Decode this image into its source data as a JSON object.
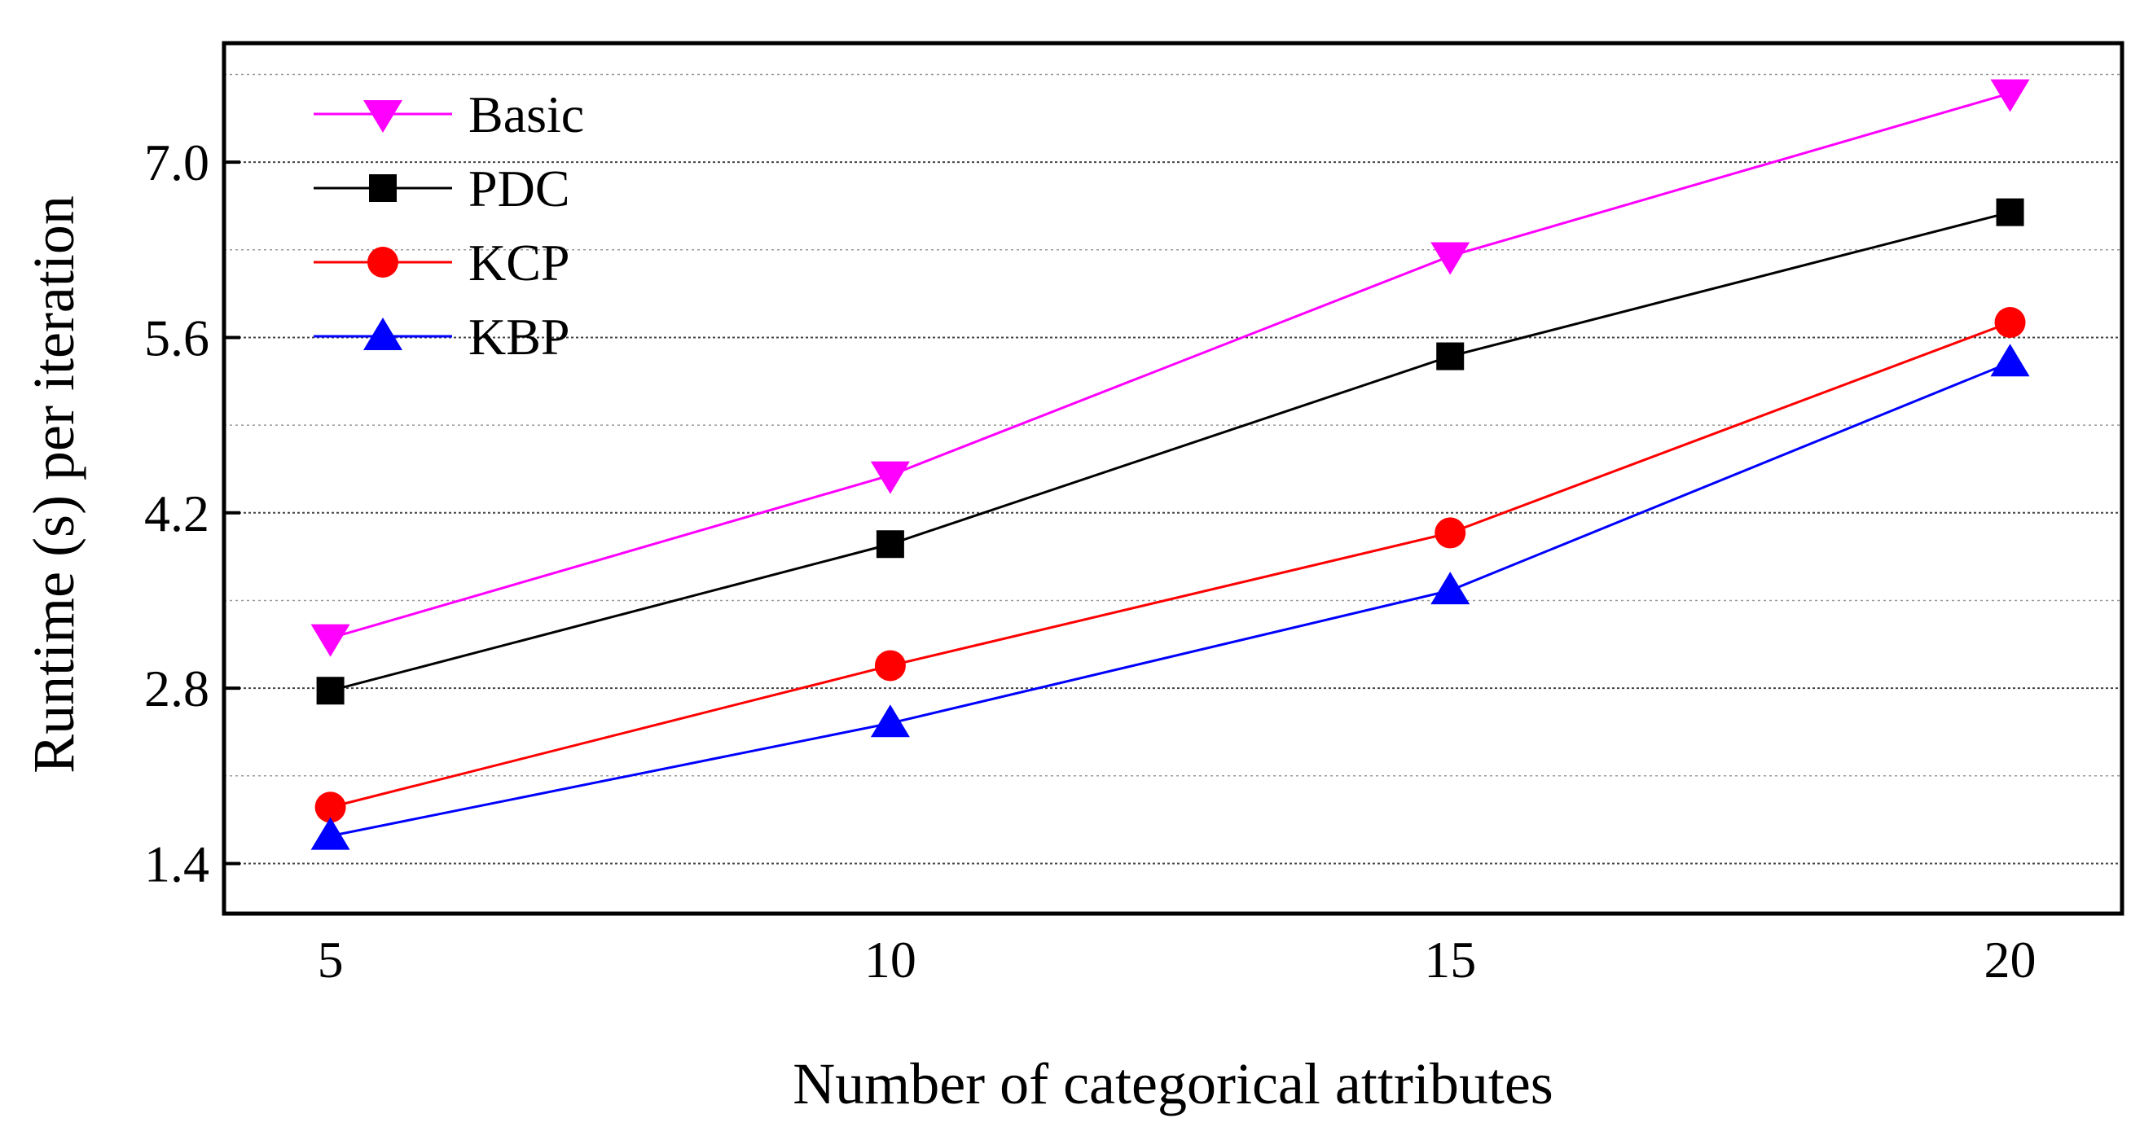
{
  "chart_data": {
    "type": "line",
    "title": "",
    "xlabel": "Number of categorical attributes",
    "ylabel": "Runtime (s) per iteration",
    "x": [
      5,
      10,
      15,
      20
    ],
    "x_ticks": [
      "5",
      "10",
      "15",
      "20"
    ],
    "xlim": [
      4.05,
      21
    ],
    "ylim": [
      1.0,
      7.95
    ],
    "y_ticks": [
      "1.4",
      "2.8",
      "4.2",
      "5.6",
      "7.0"
    ],
    "y_tick_values": [
      1.4,
      2.8,
      4.2,
      5.6,
      7.0
    ],
    "grid": true,
    "legend_position": "top-left",
    "series": [
      {
        "name": "Basic",
        "values": [
          3.2,
          4.5,
          6.25,
          7.55
        ],
        "color": "#ff00ff",
        "marker": "triangle-down"
      },
      {
        "name": "PDC",
        "values": [
          2.78,
          3.95,
          5.45,
          6.6
        ],
        "color": "#000000",
        "marker": "square"
      },
      {
        "name": "KCP",
        "values": [
          1.85,
          2.98,
          4.04,
          5.72
        ],
        "color": "#ff0000",
        "marker": "circle"
      },
      {
        "name": "KBP",
        "values": [
          1.62,
          2.52,
          3.58,
          5.4
        ],
        "color": "#0000ff",
        "marker": "triangle-up"
      }
    ]
  }
}
